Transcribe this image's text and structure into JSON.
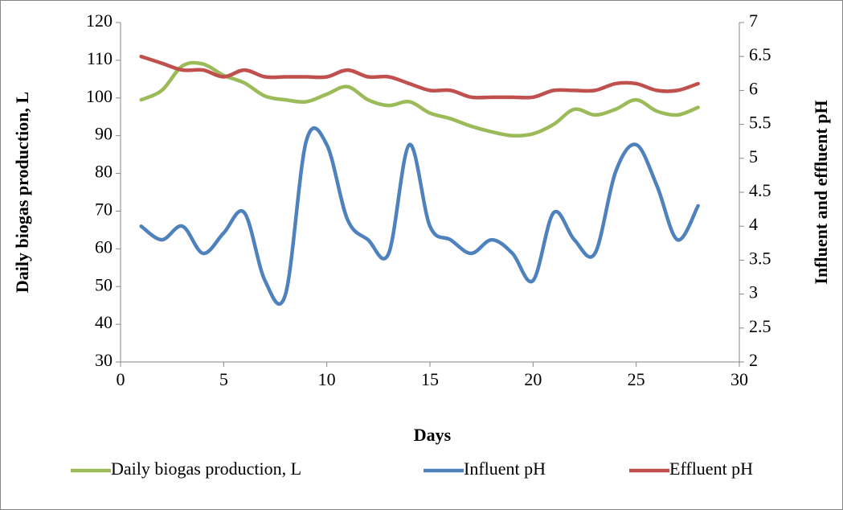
{
  "chart_data": {
    "type": "line",
    "xlabel": "Days",
    "ylabel": "Daily biogas production, L",
    "y2label": "Influent and effluent pH",
    "x": [
      1,
      2,
      3,
      4,
      5,
      6,
      7,
      8,
      9,
      10,
      11,
      12,
      13,
      14,
      15,
      16,
      17,
      18,
      19,
      20,
      21,
      22,
      23,
      24,
      25,
      26,
      27,
      28
    ],
    "series": [
      {
        "name": "Daily biogas production, L",
        "color": "#9bbb59",
        "axis": "y",
        "values": [
          99.5,
          102,
          108.5,
          109,
          106,
          104,
          100.5,
          99.5,
          99,
          101,
          103,
          99.5,
          98,
          99,
          96,
          94.5,
          92.5,
          91,
          90,
          90.5,
          93,
          97,
          95.5,
          97,
          99.5,
          96.5,
          95.5,
          97.5
        ]
      },
      {
        "name": "Influent pH",
        "color": "#4f81bd",
        "axis": "y2",
        "values": [
          4.0,
          3.8,
          4.0,
          3.6,
          3.9,
          4.2,
          3.2,
          3.0,
          5.25,
          5.2,
          4.1,
          3.8,
          3.6,
          5.2,
          4.0,
          3.8,
          3.6,
          3.8,
          3.6,
          3.2,
          4.2,
          3.8,
          3.6,
          4.8,
          5.2,
          4.6,
          3.8,
          4.3
        ]
      },
      {
        "name": "Effluent pH",
        "color": "#c0504d",
        "axis": "y2",
        "values": [
          6.5,
          6.4,
          6.3,
          6.3,
          6.2,
          6.3,
          6.2,
          6.2,
          6.2,
          6.2,
          6.3,
          6.2,
          6.2,
          6.1,
          6.0,
          6.0,
          5.9,
          5.9,
          5.9,
          5.9,
          6.0,
          6.0,
          6.0,
          6.1,
          6.1,
          6.0,
          6.0,
          6.1
        ]
      }
    ],
    "xlim": [
      0,
      30
    ],
    "xticks": [
      0,
      5,
      10,
      15,
      20,
      25,
      30
    ],
    "ylim": [
      30,
      120
    ],
    "yticks": [
      30,
      40,
      50,
      60,
      70,
      80,
      90,
      100,
      110,
      120
    ],
    "y2lim": [
      2,
      7
    ],
    "y2ticks": [
      2,
      2.5,
      3,
      3.5,
      4,
      4.5,
      5,
      5.5,
      6,
      6.5,
      7
    ],
    "legend": "bottom",
    "grid": false
  }
}
